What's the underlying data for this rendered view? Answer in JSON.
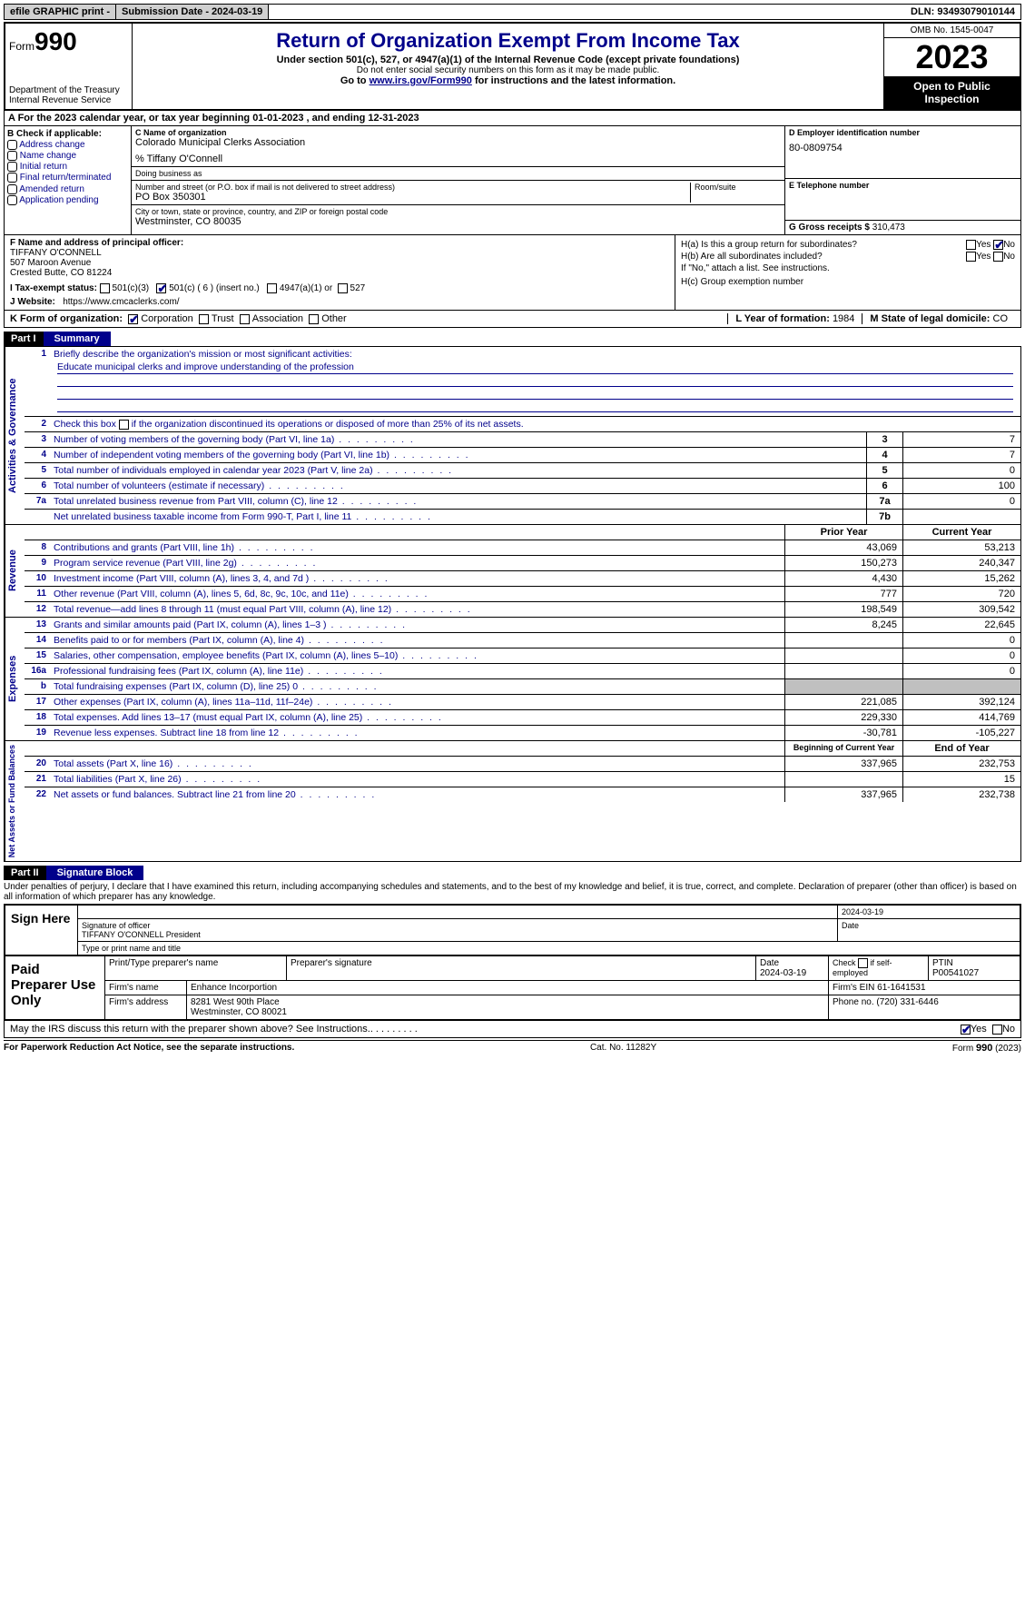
{
  "top": {
    "efile": "efile GRAPHIC print -",
    "submission": "Submission Date - 2024-03-19",
    "dln": "DLN: 93493079010144"
  },
  "header": {
    "form_label": "Form",
    "form_num": "990",
    "title": "Return of Organization Exempt From Income Tax",
    "subtitle": "Under section 501(c), 527, or 4947(a)(1) of the Internal Revenue Code (except private foundations)",
    "note1": "Do not enter social security numbers on this form as it may be made public.",
    "note2_pre": "Go to ",
    "note2_link": "www.irs.gov/Form990",
    "note2_post": " for instructions and the latest information.",
    "dept": "Department of the Treasury Internal Revenue Service",
    "omb": "OMB No. 1545-0047",
    "year": "2023",
    "inspection": "Open to Public Inspection"
  },
  "rowA": "A  For the 2023 calendar year, or tax year beginning 01-01-2023   , and ending 12-31-2023",
  "colB": {
    "title": "B Check if applicable:",
    "items": [
      "Address change",
      "Name change",
      "Initial return",
      "Final return/terminated",
      "Amended return",
      "Application pending"
    ]
  },
  "colC": {
    "name_label": "C Name of organization",
    "name": "Colorado Municipal Clerks Association",
    "care_of": "% Tiffany O'Connell",
    "dba_label": "Doing business as",
    "addr_label": "Number and street (or P.O. box if mail is not delivered to street address)",
    "room_label": "Room/suite",
    "addr": "PO Box 350301",
    "city_label": "City or town, state or province, country, and ZIP or foreign postal code",
    "city": "Westminster, CO  80035"
  },
  "colD": {
    "label": "D Employer identification number",
    "val": "80-0809754"
  },
  "colE": {
    "label": "E Telephone number"
  },
  "colG": {
    "label": "G Gross receipts $ ",
    "val": "310,473"
  },
  "colF": {
    "label": "F  Name and address of principal officer:",
    "name": "TIFFANY O'CONNELL",
    "addr1": "507 Maroon Avenue",
    "addr2": "Crested Butte, CO  81224"
  },
  "colH": {
    "a": "H(a)  Is this a group return for subordinates?",
    "b": "H(b)  Are all subordinates included?",
    "note": "If \"No,\" attach a list. See instructions.",
    "c": "H(c)  Group exemption number",
    "yes": "Yes",
    "no": "No"
  },
  "rowI": {
    "label": "I   Tax-exempt status:",
    "o1": "501(c)(3)",
    "o2": "501(c) ( 6 ) (insert no.)",
    "o3": "4947(a)(1) or",
    "o4": "527"
  },
  "rowJ": {
    "label": "J   Website:",
    "val": "https://www.cmcaclerks.com/"
  },
  "rowK": {
    "label": "K Form of organization:",
    "o1": "Corporation",
    "o2": "Trust",
    "o3": "Association",
    "o4": "Other",
    "l_label": "L Year of formation: ",
    "l_val": "1984",
    "m_label": "M State of legal domicile: ",
    "m_val": "CO"
  },
  "part1": {
    "num": "Part I",
    "title": "Summary"
  },
  "summary": {
    "side1": "Activities & Governance",
    "side2": "Revenue",
    "side3": "Expenses",
    "side4": "Net Assets or Fund Balances",
    "line1_label": "Briefly describe the organization's mission or most significant activities:",
    "line1_val": "Educate municipal clerks and improve understanding of the profession",
    "line2": "Check this box       if the organization discontinued its operations or disposed of more than 25% of its net assets.",
    "rows_ag": [
      {
        "n": "3",
        "d": "Number of voting members of the governing body (Part VI, line 1a)",
        "b": "3",
        "v": "7"
      },
      {
        "n": "4",
        "d": "Number of independent voting members of the governing body (Part VI, line 1b)",
        "b": "4",
        "v": "7"
      },
      {
        "n": "5",
        "d": "Total number of individuals employed in calendar year 2023 (Part V, line 2a)",
        "b": "5",
        "v": "0"
      },
      {
        "n": "6",
        "d": "Total number of volunteers (estimate if necessary)",
        "b": "6",
        "v": "100"
      },
      {
        "n": "7a",
        "d": "Total unrelated business revenue from Part VIII, column (C), line 12",
        "b": "7a",
        "v": "0"
      },
      {
        "n": "",
        "d": "Net unrelated business taxable income from Form 990-T, Part I, line 11",
        "b": "7b",
        "v": ""
      }
    ],
    "hdr_prior": "Prior Year",
    "hdr_curr": "Current Year",
    "rows_rev": [
      {
        "n": "8",
        "d": "Contributions and grants (Part VIII, line 1h)",
        "p": "43,069",
        "c": "53,213"
      },
      {
        "n": "9",
        "d": "Program service revenue (Part VIII, line 2g)",
        "p": "150,273",
        "c": "240,347"
      },
      {
        "n": "10",
        "d": "Investment income (Part VIII, column (A), lines 3, 4, and 7d )",
        "p": "4,430",
        "c": "15,262"
      },
      {
        "n": "11",
        "d": "Other revenue (Part VIII, column (A), lines 5, 6d, 8c, 9c, 10c, and 11e)",
        "p": "777",
        "c": "720"
      },
      {
        "n": "12",
        "d": "Total revenue—add lines 8 through 11 (must equal Part VIII, column (A), line 12)",
        "p": "198,549",
        "c": "309,542"
      }
    ],
    "rows_exp": [
      {
        "n": "13",
        "d": "Grants and similar amounts paid (Part IX, column (A), lines 1–3 )",
        "p": "8,245",
        "c": "22,645"
      },
      {
        "n": "14",
        "d": "Benefits paid to or for members (Part IX, column (A), line 4)",
        "p": "",
        "c": "0"
      },
      {
        "n": "15",
        "d": "Salaries, other compensation, employee benefits (Part IX, column (A), lines 5–10)",
        "p": "",
        "c": "0"
      },
      {
        "n": "16a",
        "d": "Professional fundraising fees (Part IX, column (A), line 11e)",
        "p": "",
        "c": "0"
      },
      {
        "n": "b",
        "d": "Total fundraising expenses (Part IX, column (D), line 25) 0",
        "p": "GRAY",
        "c": "GRAY"
      },
      {
        "n": "17",
        "d": "Other expenses (Part IX, column (A), lines 11a–11d, 11f–24e)",
        "p": "221,085",
        "c": "392,124"
      },
      {
        "n": "18",
        "d": "Total expenses. Add lines 13–17 (must equal Part IX, column (A), line 25)",
        "p": "229,330",
        "c": "414,769"
      },
      {
        "n": "19",
        "d": "Revenue less expenses. Subtract line 18 from line 12",
        "p": "-30,781",
        "c": "-105,227"
      }
    ],
    "hdr_beg": "Beginning of Current Year",
    "hdr_end": "End of Year",
    "rows_net": [
      {
        "n": "20",
        "d": "Total assets (Part X, line 16)",
        "p": "337,965",
        "c": "232,753"
      },
      {
        "n": "21",
        "d": "Total liabilities (Part X, line 26)",
        "p": "",
        "c": "15"
      },
      {
        "n": "22",
        "d": "Net assets or fund balances. Subtract line 21 from line 20",
        "p": "337,965",
        "c": "232,738"
      }
    ]
  },
  "part2": {
    "num": "Part II",
    "title": "Signature Block"
  },
  "decl": "Under penalties of perjury, I declare that I have examined this return, including accompanying schedules and statements, and to the best of my knowledge and belief, it is true, correct, and complete. Declaration of preparer (other than officer) is based on all information of which preparer has any knowledge.",
  "sign": {
    "left": "Sign Here",
    "date": "2024-03-19",
    "sig_label": "Signature of officer",
    "sig_name": "TIFFANY O'CONNELL  President",
    "type_label": "Type or print name and title",
    "date_label": "Date"
  },
  "prep": {
    "left": "Paid Preparer Use Only",
    "h1": "Print/Type preparer's name",
    "h2": "Preparer's signature",
    "h3_label": "Date",
    "h3": "2024-03-19",
    "h4": "Check        if self-employed",
    "h5_label": "PTIN",
    "h5": "P00541027",
    "firm_label": "Firm's name",
    "firm": "Enhance Incorportion",
    "ein_label": "Firm's EIN",
    "ein": "61-1641531",
    "addr_label": "Firm's address",
    "addr1": "8281 West 90th Place",
    "addr2": "Westminster, CO  80021",
    "phone_label": "Phone no.",
    "phone": "(720) 331-6446"
  },
  "discuss": {
    "q": "May the IRS discuss this return with the preparer shown above? See Instructions.",
    "yes": "Yes",
    "no": "No"
  },
  "footer": {
    "left": "For Paperwork Reduction Act Notice, see the separate instructions.",
    "mid": "Cat. No. 11282Y",
    "right_pre": "Form ",
    "right_b": "990",
    "right_post": " (2023)"
  }
}
